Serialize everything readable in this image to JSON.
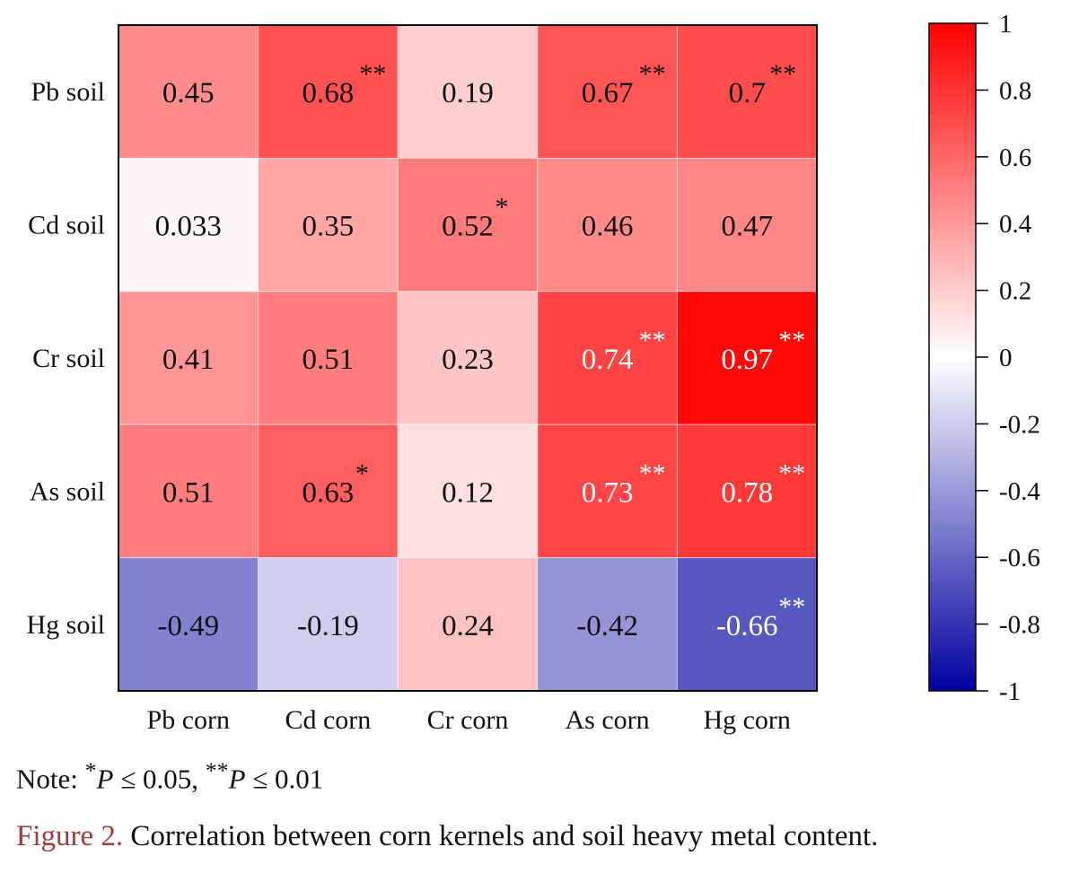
{
  "chart_data": {
    "type": "heatmap",
    "rows": [
      "Pb soil",
      "Cd soil",
      "Cr soil",
      "As soil",
      "Hg soil"
    ],
    "columns": [
      "Pb corn",
      "Cd corn",
      "Cr corn",
      "As corn",
      "Hg corn"
    ],
    "values": [
      [
        0.45,
        0.68,
        0.19,
        0.67,
        0.7
      ],
      [
        0.033,
        0.35,
        0.52,
        0.46,
        0.47
      ],
      [
        0.41,
        0.51,
        0.23,
        0.74,
        0.97
      ],
      [
        0.51,
        0.63,
        0.12,
        0.73,
        0.78
      ],
      [
        -0.49,
        -0.19,
        0.24,
        -0.42,
        -0.66
      ]
    ],
    "value_labels": [
      [
        "0.45",
        "0.68",
        "0.19",
        "0.67",
        "0.7"
      ],
      [
        "0.033",
        "0.35",
        "0.52",
        "0.46",
        "0.47"
      ],
      [
        "0.41",
        "0.51",
        "0.23",
        "0.74",
        "0.97"
      ],
      [
        "0.51",
        "0.63",
        "0.12",
        "0.73",
        "0.78"
      ],
      [
        "-0.49",
        "-0.19",
        "0.24",
        "-0.42",
        "-0.66"
      ]
    ],
    "significance": [
      [
        "",
        "**",
        "",
        "**",
        "**"
      ],
      [
        "",
        "",
        "*",
        "",
        ""
      ],
      [
        "",
        "",
        "",
        "**",
        "**"
      ],
      [
        "",
        "*",
        "",
        "**",
        "**"
      ],
      [
        "",
        "",
        "",
        "",
        "**"
      ]
    ],
    "colorbar": {
      "range": [
        -1,
        1
      ],
      "ticks": [
        1,
        0.8,
        0.6,
        0.4,
        0.2,
        0,
        -0.2,
        -0.4,
        -0.6,
        -0.8,
        -1
      ],
      "tick_labels": [
        "1",
        "0.8",
        "0.6",
        "0.4",
        "0.2",
        "0",
        "-0.2",
        "-0.4",
        "-0.6",
        "-0.8",
        "-1"
      ],
      "colors": {
        "max": "#ff0000",
        "mid": "#ffffff",
        "min": "#0000a0"
      }
    }
  },
  "note": {
    "prefix": "Note: ",
    "sig1_mark": "*",
    "sig1_text": " ≤ 0.05, ",
    "sig2_mark": "**",
    "sig2_text": " ≤ 0.01",
    "p": "P"
  },
  "caption": {
    "label": "Figure 2.",
    "text": " Correlation between corn kernels and soil heavy metal content."
  }
}
